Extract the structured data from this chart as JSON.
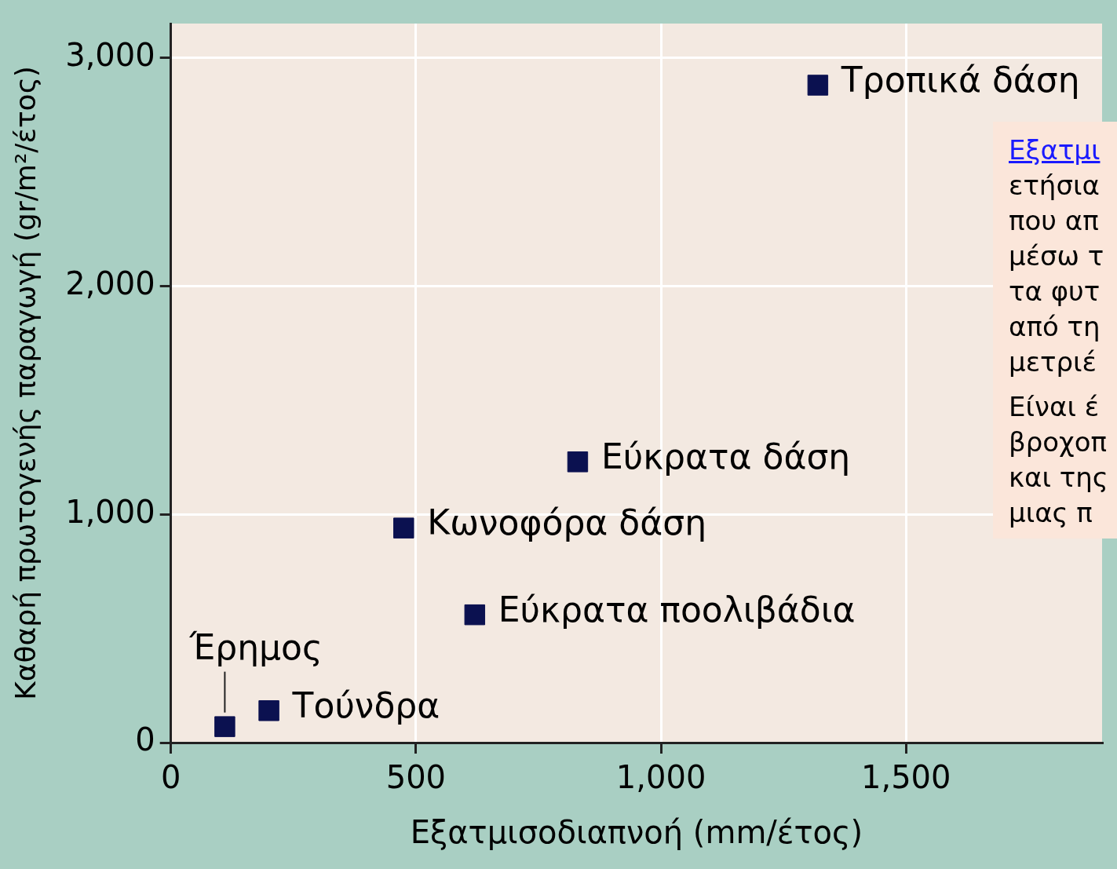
{
  "chart_data": {
    "type": "scatter",
    "xlabel": "Εξατμισοδιαπνοή (mm/έτος)",
    "ylabel": "Καθαρή πρωτογενής παραγωγή (gr/m²/έτος)",
    "x": [
      1320,
      830,
      475,
      620,
      110,
      200
    ],
    "values": [
      2880,
      1230,
      940,
      560,
      70,
      140
    ],
    "color": "#0b1150",
    "marker": "square",
    "xlim": [
      0,
      1900
    ],
    "xticks": [
      0,
      500,
      {
        "value": 1000,
        "label": "1,000"
      },
      {
        "value": 1500,
        "label": "1,500"
      }
    ],
    "ylim": [
      0,
      3150
    ],
    "yticks": [
      0,
      {
        "value": 1000,
        "label": "1,000"
      },
      {
        "value": 2000,
        "label": "2,000"
      },
      {
        "value": 3000,
        "label": "3,000"
      }
    ],
    "grid": true,
    "annotations": [
      {
        "text": "Τροπικά δάση",
        "x": 1320,
        "y": 2880
      },
      {
        "text": "Εύκρατα δάση",
        "x": 830,
        "y": 1230
      },
      {
        "text": "Κωνοφόρα δάση",
        "x": 475,
        "y": 940
      },
      {
        "text": "Εύκρατα ποολιβάδια",
        "x": 620,
        "y": 560
      },
      {
        "text": "Έρημος",
        "x": 110,
        "y": 70
      },
      {
        "text": "Τούνδρα",
        "x": 200,
        "y": 140
      },
      "Εξατμι",
      "ετήσια",
      "που απ",
      "μέσω τ",
      "τα φυτ",
      "από τη",
      "μετριέ",
      "Είναι έ",
      "βροχοπ",
      "και της",
      "μιας π"
    ]
  }
}
